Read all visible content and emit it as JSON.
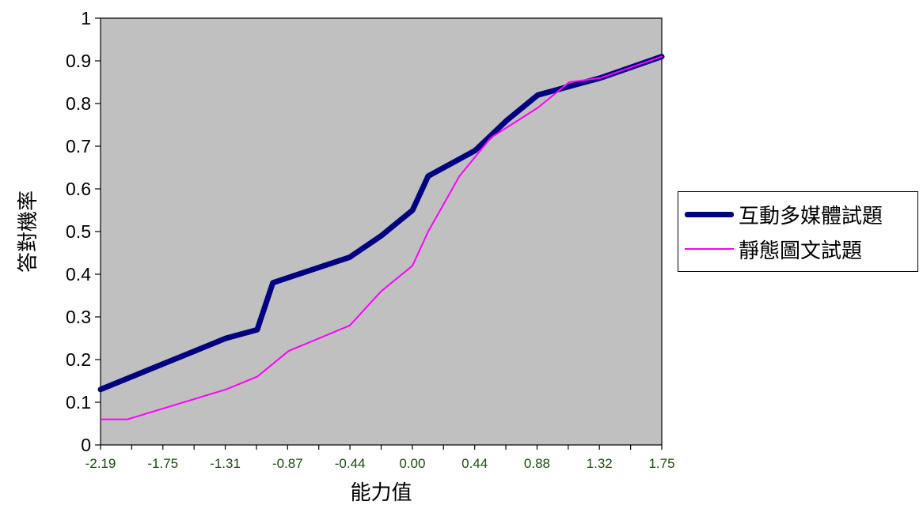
{
  "chart_data": {
    "type": "line",
    "title": "",
    "xlabel": "能力值",
    "ylabel": "答對機率",
    "x_tick_labels": [
      "-2.19",
      "-1.75",
      "-1.31",
      "-0.87",
      "-0.44",
      "0.00",
      "0.44",
      "0.88",
      "1.32",
      "1.75"
    ],
    "y_tick_labels": [
      "0",
      "0.1",
      "0.2",
      "0.3",
      "0.4",
      "0.5",
      "0.6",
      "0.7",
      "0.8",
      "0.9",
      "1"
    ],
    "xlim": [
      -2.19,
      1.75
    ],
    "ylim": [
      0,
      1
    ],
    "grid": false,
    "plot_background": "#c0c0c0",
    "legend_position": "right",
    "series": [
      {
        "name": "互動多媒體試題",
        "color": "#000080",
        "x": [
          -2.19,
          -1.75,
          -1.53,
          -1.31,
          -1.09,
          -0.98,
          -0.44,
          -0.22,
          0.0,
          0.11,
          0.44,
          0.66,
          0.88,
          1.1,
          1.32,
          1.75
        ],
        "y": [
          0.13,
          0.19,
          0.22,
          0.25,
          0.27,
          0.38,
          0.44,
          0.49,
          0.55,
          0.63,
          0.69,
          0.76,
          0.82,
          0.84,
          0.86,
          0.91
        ]
      },
      {
        "name": "靜態圖文試題",
        "color": "#ff00ff",
        "x": [
          -2.19,
          -2.0,
          -1.31,
          -1.09,
          -0.87,
          -0.44,
          -0.22,
          0.0,
          0.11,
          0.33,
          0.55,
          0.88,
          1.1,
          1.32,
          1.75
        ],
        "y": [
          0.06,
          0.06,
          0.13,
          0.16,
          0.22,
          0.28,
          0.36,
          0.42,
          0.5,
          0.63,
          0.72,
          0.79,
          0.85,
          0.86,
          0.91
        ]
      }
    ]
  }
}
